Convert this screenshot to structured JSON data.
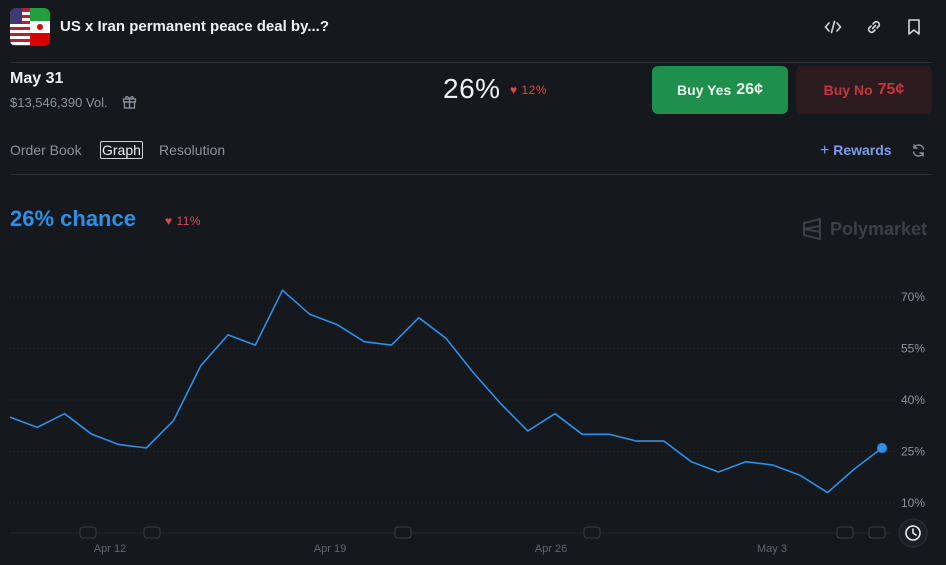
{
  "header": {
    "title": "US x Iran permanent peace deal by...?",
    "icons": [
      "embed-icon",
      "link-icon",
      "bookmark-icon"
    ]
  },
  "market": {
    "date": "May 31",
    "volume": "$13,546,390 Vol.",
    "probability": "26%",
    "change": "12%",
    "buy_yes_label": "Buy Yes",
    "buy_yes_price": "26¢",
    "buy_no_label": "Buy No",
    "buy_no_price": "75¢"
  },
  "tabs": [
    {
      "label": "Order Book",
      "active": false
    },
    {
      "label": "Graph",
      "active": true
    },
    {
      "label": "Resolution",
      "active": false
    }
  ],
  "rewards_label": "Rewards",
  "graph": {
    "chance": "26% chance",
    "chance_change": "11%",
    "watermark": "Polymarket"
  },
  "chart_data": {
    "type": "line",
    "x": [
      "Apr 7",
      "Apr 8",
      "Apr 9",
      "Apr 10",
      "Apr 11",
      "Apr 12",
      "Apr 13",
      "Apr 14",
      "Apr 15",
      "Apr 16",
      "Apr 17",
      "Apr 17.5",
      "Apr 18",
      "Apr 18.5",
      "Apr 19",
      "Apr 20",
      "Apr 20.5",
      "Apr 21",
      "Apr 22",
      "Apr 23",
      "Apr 24",
      "Apr 25",
      "Apr 26",
      "Apr 27",
      "Apr 28",
      "Apr 29",
      "Apr 30",
      "May 1",
      "May 2",
      "May 3",
      "May 4",
      "May 4.5",
      "May 5"
    ],
    "values": [
      35,
      32,
      36,
      30,
      27,
      26,
      34,
      50,
      59,
      56,
      72,
      65,
      62,
      57,
      56,
      64,
      58,
      48,
      39,
      31,
      36,
      30,
      30,
      28,
      28,
      22,
      19,
      22,
      21,
      18,
      13,
      20,
      26
    ],
    "xticks": [
      "Apr 12",
      "Apr 19",
      "Apr 26",
      "May 3"
    ],
    "yticks": [
      "10%",
      "25%",
      "40%",
      "55%",
      "70%"
    ],
    "ylim": [
      5,
      75
    ],
    "color": "#2f8fe8",
    "grid": true
  }
}
